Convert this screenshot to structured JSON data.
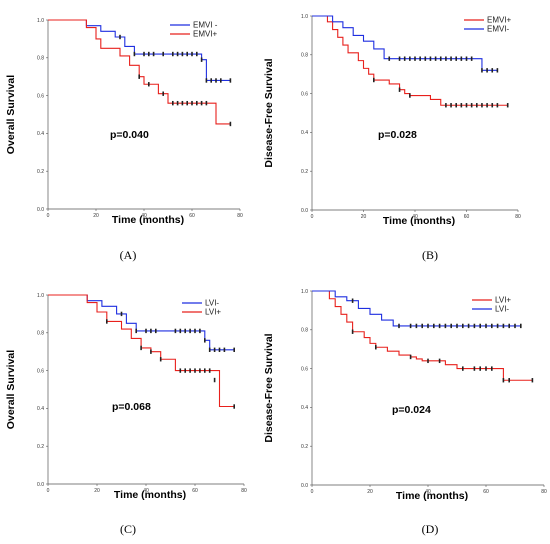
{
  "colors": {
    "series_red": "#e8201c",
    "series_blue": "#1f2fe0",
    "axis": "#555555",
    "censor": "#222222"
  },
  "chart_data": [
    {
      "type": "line",
      "panel_label": "(A)",
      "ylabel": "Overall Survival",
      "xlabel": "Time (months)",
      "annotation": "p=0.040",
      "xlim": [
        0,
        80
      ],
      "ylim": [
        0,
        1.0
      ],
      "x_ticks": [
        "0",
        "20",
        "40",
        "60",
        "80"
      ],
      "y_ticks": [
        "0.0",
        "0.2",
        "0.4",
        "0.6",
        "0.8",
        "1.0"
      ],
      "legend_position": "top-right",
      "series": [
        {
          "name": "EMVI -",
          "color": "#1f2fe0",
          "x": [
            0,
            12,
            16,
            22,
            28,
            32,
            36,
            64,
            66,
            76
          ],
          "y": [
            1.0,
            1.0,
            0.97,
            0.94,
            0.91,
            0.86,
            0.82,
            0.79,
            0.68,
            0.68
          ],
          "censor_x": [
            30,
            36,
            40,
            42,
            44,
            48,
            52,
            54,
            56,
            58,
            60,
            62,
            64,
            66,
            68,
            70,
            72,
            76
          ],
          "censor_y": [
            0.91,
            0.82,
            0.82,
            0.82,
            0.82,
            0.82,
            0.82,
            0.82,
            0.82,
            0.82,
            0.82,
            0.82,
            0.79,
            0.68,
            0.68,
            0.68,
            0.68,
            0.68
          ]
        },
        {
          "name": "EMVI+",
          "color": "#e8201c",
          "x": [
            0,
            12,
            16,
            20,
            22,
            30,
            34,
            38,
            40,
            46,
            50,
            70,
            76
          ],
          "y": [
            1.0,
            1.0,
            0.96,
            0.9,
            0.85,
            0.81,
            0.76,
            0.7,
            0.66,
            0.61,
            0.56,
            0.45,
            0.45
          ],
          "censor_x": [
            38,
            42,
            48,
            52,
            54,
            56,
            58,
            60,
            62,
            64,
            66,
            76
          ],
          "censor_y": [
            0.7,
            0.66,
            0.61,
            0.56,
            0.56,
            0.56,
            0.56,
            0.56,
            0.56,
            0.56,
            0.56,
            0.45
          ]
        }
      ]
    },
    {
      "type": "line",
      "panel_label": "(B)",
      "ylabel": "Disease-Free Survival",
      "xlabel": "Time (months)",
      "annotation": "p=0.028",
      "xlim": [
        0,
        80
      ],
      "ylim": [
        0,
        1.0
      ],
      "x_ticks": [
        "0",
        "20",
        "40",
        "60",
        "80"
      ],
      "y_ticks": [
        "0.0",
        "0.2",
        "0.4",
        "0.6",
        "0.8",
        "1.0"
      ],
      "legend_position": "top-right",
      "series": [
        {
          "name": "EMVI+",
          "color": "#e8201c",
          "x": [
            0,
            4,
            6,
            8,
            10,
            12,
            14,
            18,
            20,
            22,
            24,
            30,
            34,
            36,
            38,
            46,
            50,
            76
          ],
          "y": [
            1.0,
            1.0,
            0.97,
            0.93,
            0.89,
            0.85,
            0.81,
            0.77,
            0.73,
            0.7,
            0.67,
            0.65,
            0.62,
            0.6,
            0.59,
            0.57,
            0.54,
            0.54
          ],
          "censor_x": [
            24,
            34,
            38,
            52,
            54,
            56,
            58,
            60,
            62,
            64,
            66,
            68,
            70,
            72,
            76
          ],
          "censor_y": [
            0.67,
            0.62,
            0.59,
            0.54,
            0.54,
            0.54,
            0.54,
            0.54,
            0.54,
            0.54,
            0.54,
            0.54,
            0.54,
            0.54,
            0.54
          ]
        },
        {
          "name": "EMVI-",
          "color": "#1f2fe0",
          "x": [
            0,
            4,
            8,
            12,
            16,
            20,
            24,
            28,
            64,
            66,
            72
          ],
          "y": [
            1.0,
            1.0,
            0.97,
            0.94,
            0.9,
            0.87,
            0.83,
            0.78,
            0.78,
            0.72,
            0.72
          ],
          "censor_x": [
            30,
            34,
            36,
            38,
            40,
            42,
            44,
            46,
            48,
            50,
            52,
            54,
            56,
            58,
            60,
            62,
            66,
            68,
            70,
            72
          ],
          "censor_y": [
            0.78,
            0.78,
            0.78,
            0.78,
            0.78,
            0.78,
            0.78,
            0.78,
            0.78,
            0.78,
            0.78,
            0.78,
            0.78,
            0.78,
            0.78,
            0.78,
            0.72,
            0.72,
            0.72,
            0.72
          ]
        }
      ]
    },
    {
      "type": "line",
      "panel_label": "(C)",
      "ylabel": "Overall Survival",
      "xlabel": "Time (months)",
      "annotation": "p=0.068",
      "xlim": [
        0,
        80
      ],
      "ylim": [
        0,
        1.0
      ],
      "x_ticks": [
        "0",
        "20",
        "40",
        "60",
        "80"
      ],
      "y_ticks": [
        "0.0",
        "0.2",
        "0.4",
        "0.6",
        "0.8",
        "1.0"
      ],
      "legend_position": "top-right",
      "series": [
        {
          "name": "LVI-",
          "color": "#1f2fe0",
          "x": [
            0,
            12,
            16,
            22,
            28,
            32,
            36,
            64,
            66,
            76
          ],
          "y": [
            1.0,
            1.0,
            0.97,
            0.94,
            0.9,
            0.85,
            0.81,
            0.76,
            0.71,
            0.71
          ],
          "censor_x": [
            30,
            36,
            40,
            42,
            44,
            52,
            54,
            56,
            58,
            60,
            62,
            64,
            66,
            68,
            70,
            72,
            76
          ],
          "censor_y": [
            0.9,
            0.81,
            0.81,
            0.81,
            0.81,
            0.81,
            0.81,
            0.81,
            0.81,
            0.81,
            0.81,
            0.76,
            0.71,
            0.71,
            0.71,
            0.71,
            0.71
          ]
        },
        {
          "name": "LVI+",
          "color": "#e8201c",
          "x": [
            0,
            12,
            16,
            20,
            24,
            30,
            34,
            38,
            42,
            46,
            52,
            70,
            76
          ],
          "y": [
            1.0,
            1.0,
            0.96,
            0.91,
            0.86,
            0.82,
            0.77,
            0.72,
            0.7,
            0.66,
            0.6,
            0.41,
            0.41
          ],
          "censor_x": [
            24,
            38,
            42,
            46,
            54,
            56,
            58,
            60,
            62,
            64,
            66,
            68,
            76
          ],
          "censor_y": [
            0.86,
            0.72,
            0.7,
            0.66,
            0.6,
            0.6,
            0.6,
            0.6,
            0.6,
            0.6,
            0.6,
            0.55,
            0.41
          ]
        }
      ]
    },
    {
      "type": "line",
      "panel_label": "(D)",
      "ylabel": "Disease-Free Survival",
      "xlabel": "Time (months)",
      "annotation": "p=0.024",
      "xlim": [
        0,
        80
      ],
      "ylim": [
        0,
        1.0
      ],
      "x_ticks": [
        "0",
        "20",
        "40",
        "60",
        "80"
      ],
      "y_ticks": [
        "0.0",
        "0.2",
        "0.4",
        "0.6",
        "0.8",
        "1.0"
      ],
      "legend_position": "top-right",
      "series": [
        {
          "name": "LVI+",
          "color": "#e8201c",
          "x": [
            0,
            4,
            6,
            8,
            10,
            12,
            14,
            18,
            20,
            22,
            26,
            30,
            34,
            36,
            38,
            46,
            50,
            64,
            66,
            76
          ],
          "y": [
            1.0,
            1.0,
            0.96,
            0.92,
            0.88,
            0.84,
            0.79,
            0.76,
            0.73,
            0.71,
            0.69,
            0.67,
            0.66,
            0.65,
            0.64,
            0.62,
            0.6,
            0.6,
            0.54,
            0.54
          ],
          "censor_x": [
            14,
            22,
            34,
            40,
            44,
            52,
            56,
            58,
            60,
            62,
            66,
            68,
            76
          ],
          "censor_y": [
            0.79,
            0.71,
            0.66,
            0.64,
            0.64,
            0.6,
            0.6,
            0.6,
            0.6,
            0.6,
            0.54,
            0.54,
            0.54
          ]
        },
        {
          "name": "LVI-",
          "color": "#1f2fe0",
          "x": [
            0,
            4,
            8,
            12,
            16,
            20,
            24,
            28,
            72
          ],
          "y": [
            1.0,
            1.0,
            0.97,
            0.95,
            0.91,
            0.88,
            0.85,
            0.82,
            0.82
          ],
          "censor_x": [
            14,
            30,
            34,
            36,
            38,
            40,
            42,
            44,
            46,
            48,
            50,
            52,
            54,
            56,
            58,
            60,
            62,
            64,
            66,
            68,
            70,
            72
          ],
          "censor_y": [
            0.95,
            0.82,
            0.82,
            0.82,
            0.82,
            0.82,
            0.82,
            0.82,
            0.82,
            0.82,
            0.82,
            0.82,
            0.82,
            0.82,
            0.82,
            0.82,
            0.82,
            0.82,
            0.82,
            0.82,
            0.82,
            0.82
          ]
        }
      ]
    }
  ]
}
